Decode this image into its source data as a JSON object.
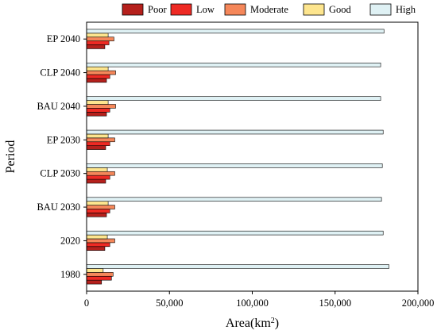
{
  "chart_data": {
    "type": "bar",
    "orientation": "horizontal",
    "title": "",
    "xlabel": "Area(km",
    "xlabel_sup": "2",
    "xlabel_close": ")",
    "ylabel": "Period",
    "xlim": [
      0,
      200000
    ],
    "xticks": [
      0,
      50000,
      100000,
      150000,
      200000
    ],
    "xtick_labels": [
      "0",
      "50,000",
      "100,000",
      "150,000",
      "200,000"
    ],
    "categories": [
      "1980",
      "2020",
      "BAU 2030",
      "CLP 2030",
      "EP 2030",
      "BAU 2040",
      "CLP 2040",
      "EP 2040"
    ],
    "legend_position": "top",
    "grid": false,
    "series": [
      {
        "name": "Poor",
        "color": "#b5201c",
        "values": [
          9000,
          11000,
          12000,
          11500,
          11500,
          12000,
          12000,
          11000
        ]
      },
      {
        "name": "Low",
        "color": "#ee2a24",
        "values": [
          15000,
          14000,
          14000,
          14000,
          14000,
          14000,
          14000,
          13500
        ]
      },
      {
        "name": "Moderate",
        "color": "#f5875a",
        "values": [
          16000,
          17000,
          17000,
          17000,
          17000,
          17500,
          17500,
          16500
        ]
      },
      {
        "name": "Good",
        "color": "#fde58e",
        "values": [
          10000,
          12500,
          13000,
          12500,
          13000,
          13000,
          13000,
          13000
        ]
      },
      {
        "name": "High",
        "color": "#dff1f4",
        "values": [
          182500,
          179000,
          178000,
          178500,
          179000,
          177500,
          177500,
          179500
        ]
      }
    ]
  }
}
